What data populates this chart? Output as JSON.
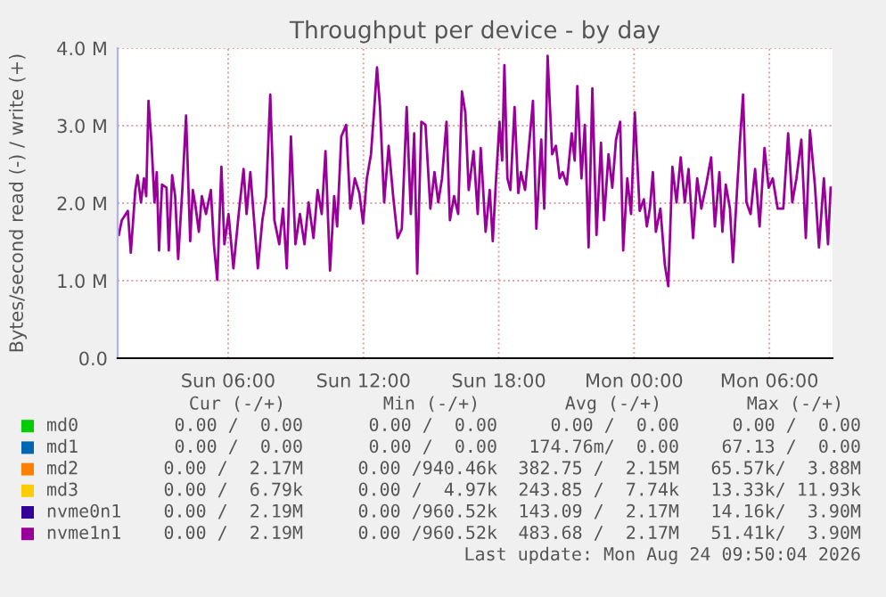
{
  "chart_data": {
    "type": "line",
    "title": "Throughput per device - by day",
    "ylabel": "Bytes/second read (-) / write (+)",
    "xlim": [
      "2026-08-23T01:06",
      "2026-08-24T08:48"
    ],
    "xticks": [
      {
        "value": "2026-08-23T06:00",
        "label": "Sun 06:00"
      },
      {
        "value": "2026-08-23T12:00",
        "label": "Sun 12:00"
      },
      {
        "value": "2026-08-23T18:00",
        "label": "Sun 18:00"
      },
      {
        "value": "2026-08-24T00:00",
        "label": "Mon 00:00"
      },
      {
        "value": "2026-08-24T06:00",
        "label": "Mon 06:00"
      }
    ],
    "ylim": [
      0,
      4.0
    ],
    "yticks": [
      {
        "value": 0,
        "label": "0.0"
      },
      {
        "value": 1,
        "label": "1.0 M"
      },
      {
        "value": 2,
        "label": "2.0 M"
      },
      {
        "value": 3,
        "label": "3.0 M"
      },
      {
        "value": 4,
        "label": "4.0 M"
      }
    ],
    "grid": true,
    "legend": "bottom",
    "series": [
      {
        "name": "md0",
        "color": "#00cc00"
      },
      {
        "name": "md1",
        "color": "#0066b3"
      },
      {
        "name": "md2",
        "color": "#ff8000"
      },
      {
        "name": "md3",
        "color": "#ffcc00"
      },
      {
        "name": "nvme0n1",
        "color": "#330099"
      },
      {
        "name": "nvme1n1",
        "color": "#990099",
        "x": [
          "2026-08-23T01:09",
          "2026-08-23T01:17",
          "2026-08-23T01:33",
          "2026-08-23T01:41",
          "2026-08-23T01:53",
          "2026-08-23T01:59",
          "2026-08-23T02:08",
          "2026-08-23T02:16",
          "2026-08-23T02:22",
          "2026-08-23T02:28",
          "2026-08-23T02:36",
          "2026-08-23T02:44",
          "2026-08-23T02:50",
          "2026-08-23T02:56",
          "2026-08-23T03:04",
          "2026-08-23T03:16",
          "2026-08-23T03:22",
          "2026-08-23T03:31",
          "2026-08-23T03:39",
          "2026-08-23T03:47",
          "2026-08-23T03:58",
          "2026-08-23T04:08",
          "2026-08-23T04:19",
          "2026-08-23T04:26",
          "2026-08-23T04:34",
          "2026-08-23T04:42",
          "2026-08-23T04:50",
          "2026-08-23T05:01",
          "2026-08-23T05:14",
          "2026-08-23T05:22",
          "2026-08-23T05:31",
          "2026-08-23T05:42",
          "2026-08-23T05:50",
          "2026-08-23T06:01",
          "2026-08-23T06:14",
          "2026-08-23T06:28",
          "2026-08-23T06:41",
          "2026-08-23T06:49",
          "2026-08-23T06:59",
          "2026-08-23T07:09",
          "2026-08-23T07:19",
          "2026-08-23T07:31",
          "2026-08-23T07:41",
          "2026-08-23T07:52",
          "2026-08-23T08:03",
          "2026-08-23T08:16",
          "2026-08-23T08:26",
          "2026-08-23T08:36",
          "2026-08-23T08:47",
          "2026-08-23T08:59",
          "2026-08-23T09:11",
          "2026-08-23T09:23",
          "2026-08-23T09:34",
          "2026-08-23T09:47",
          "2026-08-23T09:58",
          "2026-08-23T10:09",
          "2026-08-23T10:19",
          "2026-08-23T10:31",
          "2026-08-23T10:42",
          "2026-08-23T10:50",
          "2026-08-23T11:01",
          "2026-08-23T11:14",
          "2026-08-23T11:25",
          "2026-08-23T11:37",
          "2026-08-23T11:49",
          "2026-08-23T11:59",
          "2026-08-23T12:09",
          "2026-08-23T12:20",
          "2026-08-23T12:28",
          "2026-08-23T12:36",
          "2026-08-23T12:44",
          "2026-08-23T12:55",
          "2026-08-23T13:07",
          "2026-08-23T13:19",
          "2026-08-23T13:31",
          "2026-08-23T13:42",
          "2026-08-23T13:55",
          "2026-08-23T14:06",
          "2026-08-23T14:15",
          "2026-08-23T14:23",
          "2026-08-23T14:34",
          "2026-08-23T14:45",
          "2026-08-23T14:58",
          "2026-08-23T15:09",
          "2026-08-23T15:19",
          "2026-08-23T15:29",
          "2026-08-23T15:41",
          "2026-08-23T15:50",
          "2026-08-23T16:01",
          "2026-08-23T16:12",
          "2026-08-23T16:22",
          "2026-08-23T16:31",
          "2026-08-23T16:40",
          "2026-08-23T16:53",
          "2026-08-23T17:04",
          "2026-08-23T17:12",
          "2026-08-23T17:25",
          "2026-08-23T17:36",
          "2026-08-23T17:44",
          "2026-08-23T17:52",
          "2026-08-23T18:02",
          "2026-08-23T18:09",
          "2026-08-23T18:15",
          "2026-08-23T18:23",
          "2026-08-23T18:31",
          "2026-08-23T18:42",
          "2026-08-23T18:52",
          "2026-08-23T18:59",
          "2026-08-23T19:10",
          "2026-08-23T19:22",
          "2026-08-23T19:31",
          "2026-08-23T19:40",
          "2026-08-23T19:53",
          "2026-08-23T20:01",
          "2026-08-23T20:10",
          "2026-08-23T20:22",
          "2026-08-23T20:32",
          "2026-08-23T20:42",
          "2026-08-23T20:50",
          "2026-08-23T21:01",
          "2026-08-23T21:14",
          "2026-08-23T21:22",
          "2026-08-23T21:29",
          "2026-08-23T21:40",
          "2026-08-23T21:49",
          "2026-08-23T21:59",
          "2026-08-23T22:09",
          "2026-08-23T22:20",
          "2026-08-23T22:32",
          "2026-08-23T22:40",
          "2026-08-23T22:52",
          "2026-08-23T23:02",
          "2026-08-23T23:12",
          "2026-08-23T23:23",
          "2026-08-23T23:31",
          "2026-08-23T23:42",
          "2026-08-23T23:52",
          "2026-08-24T00:02",
          "2026-08-24T00:15",
          "2026-08-24T00:26",
          "2026-08-24T00:34",
          "2026-08-24T00:42",
          "2026-08-24T00:50",
          "2026-08-24T00:58",
          "2026-08-24T01:10",
          "2026-08-24T01:22",
          "2026-08-24T01:31",
          "2026-08-24T01:42",
          "2026-08-24T01:53",
          "2026-08-24T02:04",
          "2026-08-24T02:15",
          "2026-08-24T02:25",
          "2026-08-24T02:37",
          "2026-08-24T02:48",
          "2026-08-24T02:59",
          "2026-08-24T03:12",
          "2026-08-24T03:25",
          "2026-08-24T03:35",
          "2026-08-24T03:47",
          "2026-08-24T03:55",
          "2026-08-24T04:04",
          "2026-08-24T04:15",
          "2026-08-24T04:23",
          "2026-08-24T04:34",
          "2026-08-24T04:42",
          "2026-08-24T04:50",
          "2026-08-24T04:59",
          "2026-08-24T05:10",
          "2026-08-24T05:22",
          "2026-08-24T05:34",
          "2026-08-24T05:47",
          "2026-08-24T05:58",
          "2026-08-24T06:09",
          "2026-08-24T06:22",
          "2026-08-24T06:37",
          "2026-08-24T06:50",
          "2026-08-24T07:01",
          "2026-08-24T07:12",
          "2026-08-24T07:25",
          "2026-08-24T07:37",
          "2026-08-24T07:48",
          "2026-08-24T08:01",
          "2026-08-24T08:12",
          "2026-08-24T08:25",
          "2026-08-24T08:36",
          "2026-08-24T08:43"
        ],
        "values": [
          1.59,
          1.78,
          1.9,
          1.36,
          2.17,
          2.36,
          2.01,
          2.32,
          2.09,
          3.32,
          2.78,
          2.01,
          2.4,
          1.39,
          2.24,
          2.2,
          1.39,
          2.36,
          2.09,
          1.28,
          2.17,
          3.13,
          1.51,
          2.17,
          1.93,
          1.63,
          2.09,
          1.86,
          2.17,
          1.47,
          1.01,
          2.47,
          1.47,
          1.86,
          1.16,
          1.86,
          2.44,
          1.86,
          2.4,
          1.78,
          1.16,
          1.78,
          2.09,
          3.4,
          1.78,
          1.47,
          1.93,
          1.16,
          2.86,
          1.47,
          1.86,
          1.47,
          2.01,
          1.55,
          2.17,
          1.86,
          2.67,
          1.13,
          2.09,
          1.7,
          2.86,
          3.01,
          1.93,
          2.32,
          2.13,
          1.74,
          2.32,
          2.63,
          3.17,
          3.75,
          3.24,
          2.01,
          2.74,
          2.09,
          1.55,
          1.67,
          3.24,
          1.86,
          2.9,
          1.09,
          3.05,
          3.01,
          1.93,
          2.4,
          2.01,
          2.32,
          3.05,
          1.78,
          2.09,
          1.86,
          3.44,
          3.17,
          2.17,
          2.67,
          1.86,
          2.71,
          1.63,
          2.17,
          1.51,
          2.24,
          3.05,
          2.55,
          3.78,
          2.32,
          2.17,
          3.24,
          2.13,
          2.4,
          2.17,
          2.82,
          3.32,
          1.67,
          2.82,
          1.93,
          3.9,
          2.63,
          2.74,
          2.32,
          2.4,
          2.24,
          2.9,
          2.55,
          3.51,
          2.32,
          3.01,
          1.43,
          3.48,
          1.59,
          2.78,
          1.78,
          2.63,
          2.2,
          2.82,
          3.05,
          1.39,
          2.32,
          1.86,
          3.17,
          1.9,
          2.05,
          1.7,
          1.93,
          2.4,
          1.63,
          1.93,
          1.2,
          0.93,
          2.47,
          2.01,
          2.59,
          2.01,
          2.44,
          1.55,
          2.32,
          1.93,
          2.24,
          2.59,
          1.7,
          2.4,
          1.63,
          2.24,
          1.93,
          1.24,
          2.17,
          2.82,
          3.4,
          2.01,
          1.86,
          2.44,
          1.7,
          2.71,
          2.2,
          2.32,
          1.93,
          1.93,
          2.9,
          2.01,
          2.32,
          2.82,
          1.55,
          2.94,
          2.24,
          1.43,
          2.32,
          1.47,
          2.2
        ]
      }
    ],
    "annotations": [
      "Cur (-/+)",
      "Min (-/+)",
      "Avg (-/+)",
      "Max (-/+)",
      "0.00 /  0.00",
      "0.00 /  0.00",
      "0.00 /  0.00",
      "0.00 /  0.00",
      "0.00 /  0.00",
      "0.00 /  0.00",
      "174.76m/  0.00",
      "67.13 /  0.00",
      "0.00 /  2.17M",
      "0.00 /940.46k",
      "382.75 /  2.15M",
      "65.57k/  3.88M",
      "0.00 /  6.79k",
      "0.00 /  4.97k",
      "243.85 /  7.74k",
      "13.33k/ 11.93k",
      "0.00 /  2.19M",
      "0.00 /960.52k",
      "143.09 /  2.17M",
      "14.16k/  3.90M",
      "0.00 /  2.19M",
      "0.00 /960.52k",
      "483.68 /  2.17M",
      "51.41k/  3.90M",
      "Last update: Mon Aug 24 09:50:04 2026"
    ]
  }
}
